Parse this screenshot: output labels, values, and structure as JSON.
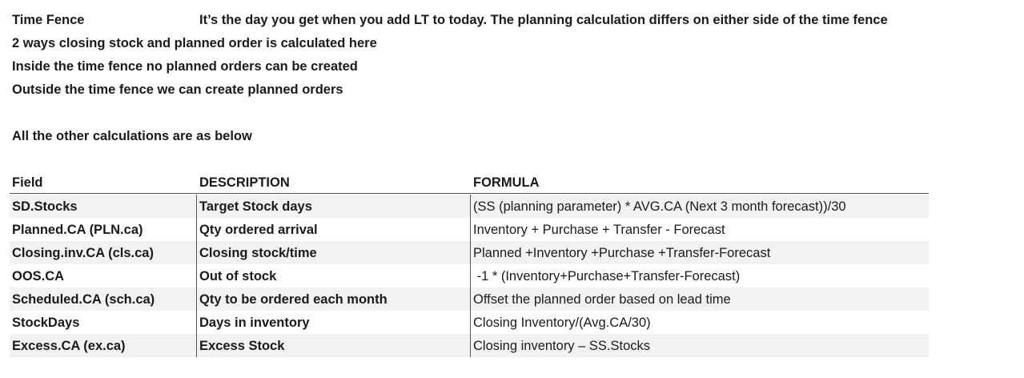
{
  "intro": {
    "term": "Time Fence",
    "definition": "It’s the day you get when you add LT to today. The planning calculation differs on either side of the time fence",
    "lines": [
      "2 ways closing stock and planned order is calculated here",
      "Inside the time fence no planned orders can be created",
      "Outside the time fence we can create planned orders"
    ],
    "note": "All the other calculations are as below"
  },
  "table": {
    "columns": [
      "Field",
      "DESCRIPTION",
      "FORMULA"
    ],
    "rows": [
      [
        "SD.Stocks",
        "Target Stock days",
        "(SS (planning parameter) * AVG.CA (Next 3 month forecast))/30"
      ],
      [
        "Planned.CA (PLN.ca)",
        "Qty ordered arrival",
        "Inventory + Purchase + Transfer - Forecast"
      ],
      [
        "Closing.inv.CA (cls.ca)",
        "Closing stock/time",
        "Planned +Inventory +Purchase +Transfer-Forecast"
      ],
      [
        "OOS.CA",
        "Out of stock",
        " -1 * (Inventory+Purchase+Transfer-Forecast)"
      ],
      [
        "Scheduled.CA (sch.ca)",
        "Qty to be ordered each month",
        "Offset the planned order based on lead time"
      ],
      [
        "StockDays",
        "Days in inventory",
        "Closing Inventory/(Avg.CA/30)"
      ],
      [
        "Excess.CA (ex.ca)",
        "Excess Stock",
        "Closing inventory – SS.Stocks"
      ]
    ]
  }
}
